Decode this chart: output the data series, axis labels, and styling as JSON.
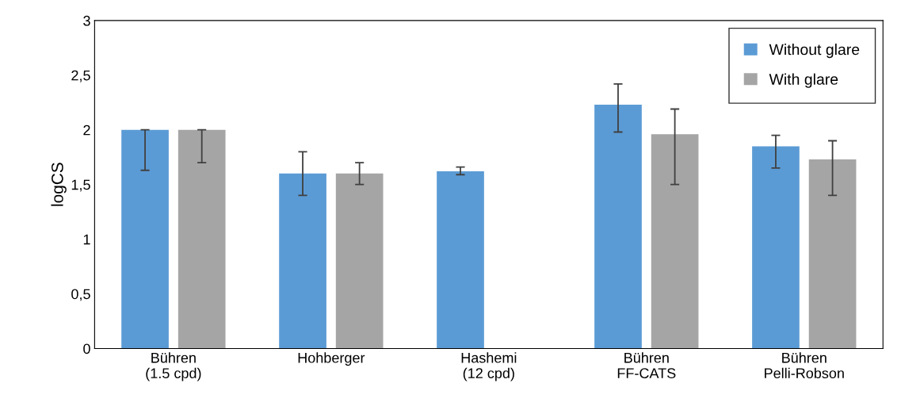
{
  "chart_data": {
    "type": "bar",
    "ylabel": "logCS",
    "categories": [
      "Bühren\n(1.5 cpd)",
      "Hohberger",
      "Hashemi\n(12 cpd)",
      "Bühren\nFF-CATS",
      "Bühren\nPelli-Robson"
    ],
    "series": [
      {
        "name": "Without glare",
        "color": "#5b9bd5",
        "values": [
          2.0,
          1.6,
          1.62,
          2.23,
          1.85
        ],
        "errors": [
          [
            1.63,
            2.0
          ],
          [
            1.4,
            1.8
          ],
          [
            1.59,
            1.66
          ],
          [
            1.98,
            2.42
          ],
          [
            1.65,
            1.95
          ]
        ]
      },
      {
        "name": "With glare",
        "color": "#a5a5a5",
        "values": [
          2.0,
          1.6,
          null,
          1.96,
          1.73
        ],
        "errors": [
          [
            1.7,
            2.0
          ],
          [
            1.5,
            1.7
          ],
          null,
          [
            1.5,
            2.19
          ],
          [
            1.4,
            1.9
          ]
        ]
      }
    ],
    "ylim": [
      0,
      3
    ],
    "yticks": [
      0,
      {
        "value": 0.5,
        "label": "0,5"
      },
      1,
      {
        "value": 1.5,
        "label": "1,5"
      },
      2,
      {
        "value": 2.5,
        "label": "2,5"
      },
      3
    ],
    "grid": false,
    "legend": "top right"
  }
}
